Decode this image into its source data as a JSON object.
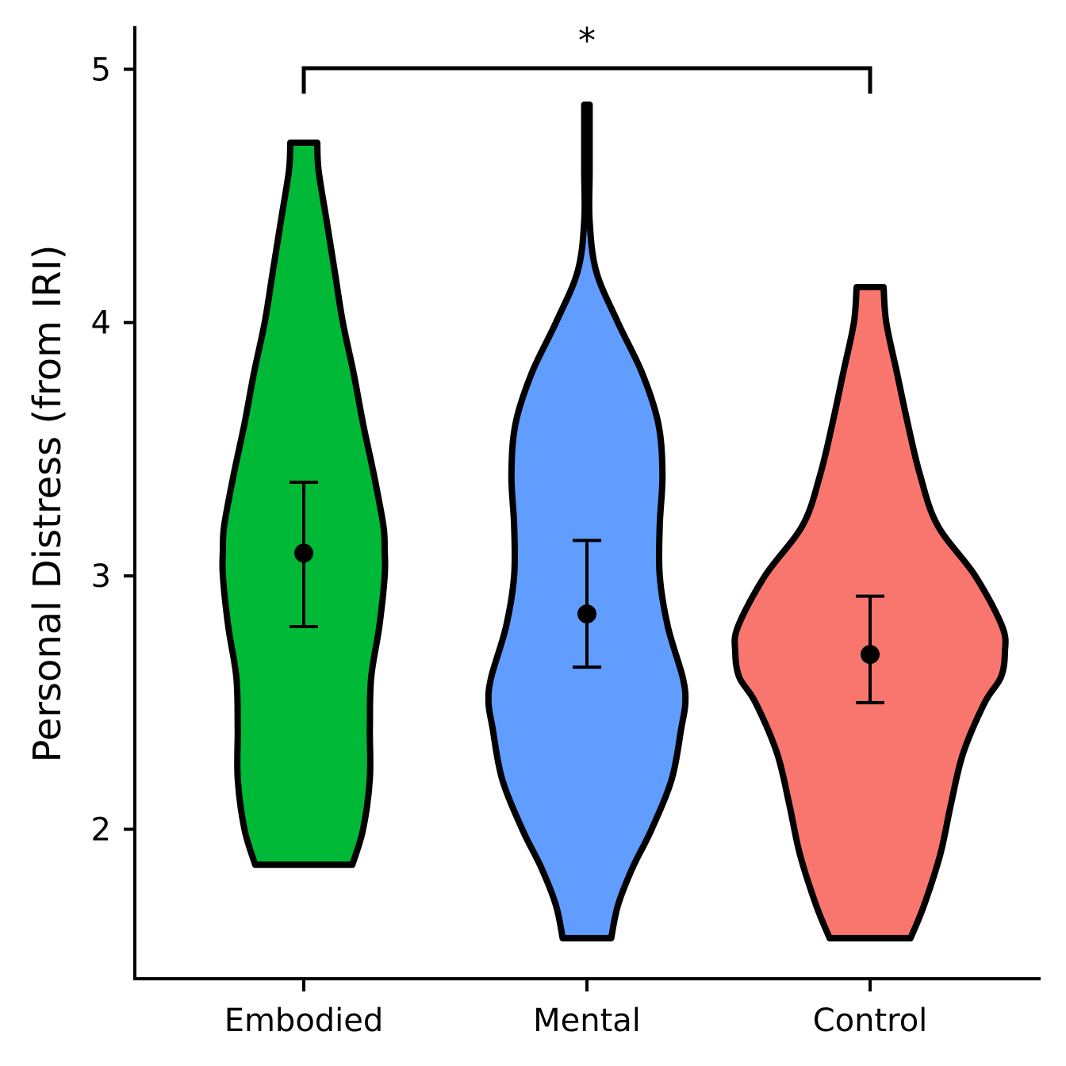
{
  "chart_data": {
    "type": "violin",
    "ylabel": "Personal Distress (from IRI)",
    "xlabel": "",
    "ylim": [
      1.41,
      5.17
    ],
    "yticks": [
      2,
      3,
      4,
      5
    ],
    "grid": false,
    "legend": "none",
    "categories": [
      "Embodied",
      "Mental",
      "Control"
    ],
    "groups": [
      {
        "name": "Embodied",
        "color": "#00b936",
        "mean": 3.09,
        "ci_low": 2.8,
        "ci_high": 3.37,
        "range": [
          1.86,
          4.71
        ],
        "density": [
          [
            1.86,
            0.36
          ],
          [
            2.0,
            0.44
          ],
          [
            2.2,
            0.49
          ],
          [
            2.4,
            0.49
          ],
          [
            2.6,
            0.5
          ],
          [
            2.8,
            0.56
          ],
          [
            3.0,
            0.6
          ],
          [
            3.1,
            0.6
          ],
          [
            3.2,
            0.59
          ],
          [
            3.4,
            0.52
          ],
          [
            3.6,
            0.44
          ],
          [
            3.8,
            0.37
          ],
          [
            4.0,
            0.29
          ],
          [
            4.2,
            0.23
          ],
          [
            4.4,
            0.17
          ],
          [
            4.6,
            0.11
          ],
          [
            4.71,
            0.1
          ]
        ]
      },
      {
        "name": "Mental",
        "color": "#619cff",
        "mean": 2.85,
        "ci_low": 2.64,
        "ci_high": 3.14,
        "range": [
          1.57,
          4.86
        ],
        "density": [
          [
            1.57,
            0.18
          ],
          [
            1.7,
            0.23
          ],
          [
            1.85,
            0.34
          ],
          [
            2.0,
            0.48
          ],
          [
            2.2,
            0.63
          ],
          [
            2.4,
            0.7
          ],
          [
            2.5,
            0.73
          ],
          [
            2.6,
            0.71
          ],
          [
            2.8,
            0.6
          ],
          [
            3.0,
            0.54
          ],
          [
            3.2,
            0.54
          ],
          [
            3.4,
            0.56
          ],
          [
            3.6,
            0.53
          ],
          [
            3.8,
            0.41
          ],
          [
            4.0,
            0.23
          ],
          [
            4.2,
            0.07
          ],
          [
            4.4,
            0.02
          ],
          [
            4.6,
            0.02
          ],
          [
            4.86,
            0.02
          ]
        ]
      },
      {
        "name": "Control",
        "color": "#f8766d",
        "mean": 2.69,
        "ci_low": 2.5,
        "ci_high": 2.92,
        "range": [
          1.57,
          4.14
        ],
        "density": [
          [
            1.57,
            0.3
          ],
          [
            1.7,
            0.4
          ],
          [
            1.9,
            0.52
          ],
          [
            2.1,
            0.6
          ],
          [
            2.3,
            0.69
          ],
          [
            2.5,
            0.85
          ],
          [
            2.6,
            0.97
          ],
          [
            2.7,
            1.0
          ],
          [
            2.8,
            0.98
          ],
          [
            3.0,
            0.78
          ],
          [
            3.2,
            0.5
          ],
          [
            3.4,
            0.37
          ],
          [
            3.6,
            0.28
          ],
          [
            3.8,
            0.2
          ],
          [
            4.0,
            0.12
          ],
          [
            4.14,
            0.1
          ]
        ]
      }
    ],
    "significance": [
      {
        "from": "Embodied",
        "to": "Control",
        "label": "*"
      }
    ]
  }
}
